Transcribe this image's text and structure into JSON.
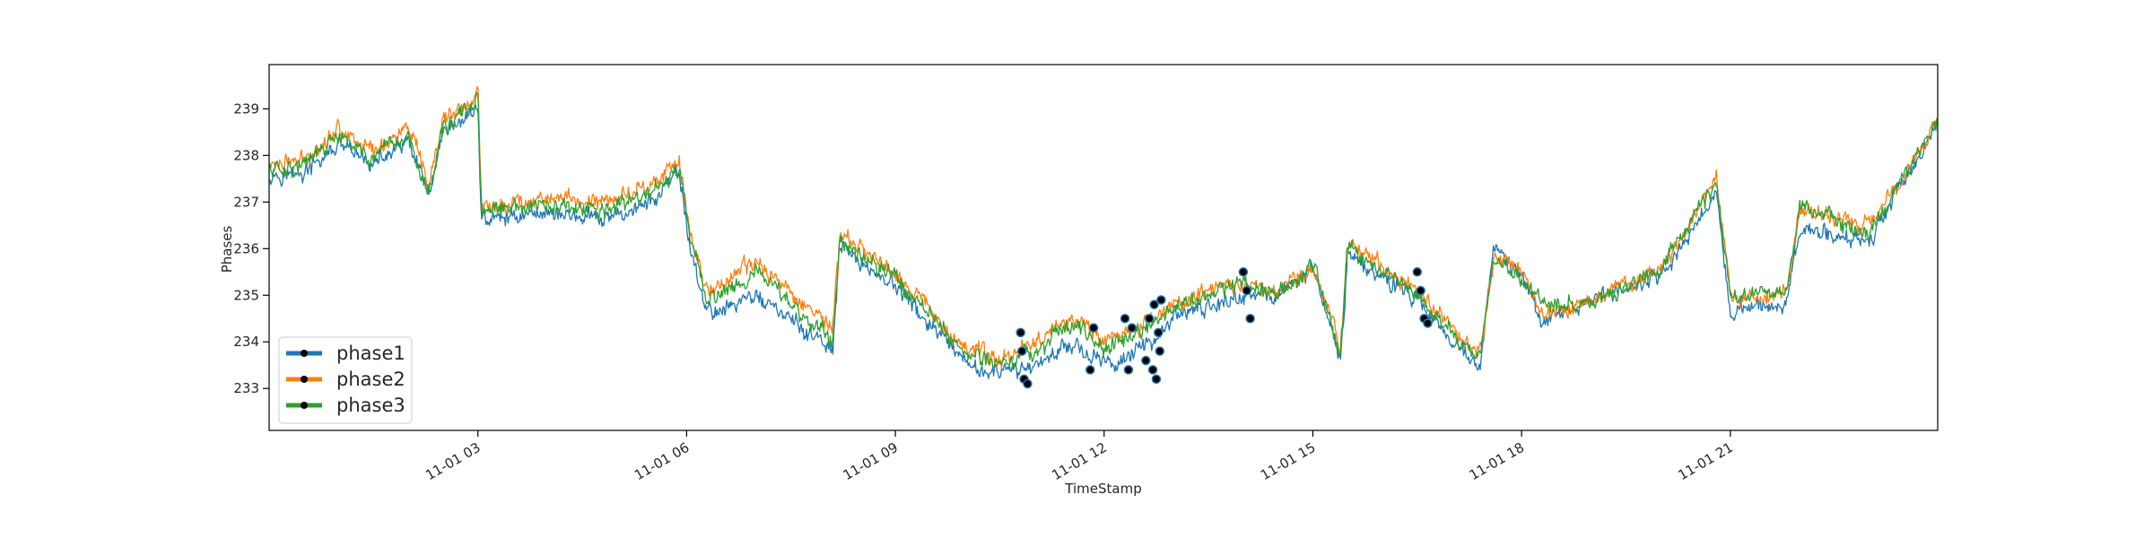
{
  "chart_data": {
    "type": "line",
    "title": "",
    "xlabel": "TimeStamp",
    "ylabel": "Phases",
    "xlim": [
      "2018-11-01 00:00",
      "2018-11-01 23:59"
    ],
    "ylim": [
      232.1,
      239.95
    ],
    "grid": false,
    "legend_position": "lower-left",
    "x_tick_labels": [
      "11-01 03",
      "11-01 06",
      "11-01 09",
      "11-01 12",
      "11-01 15",
      "11-01 18",
      "11-01 21"
    ],
    "x_tick_hours": [
      3,
      6,
      9,
      12,
      15,
      18,
      21
    ],
    "y_ticks": [
      233,
      234,
      235,
      236,
      237,
      238,
      239
    ],
    "series": [
      {
        "name": "phase1",
        "color": "#1f77b4",
        "anchor_hours": [
          0,
          0.5,
          1,
          1.5,
          2,
          2.3,
          2.5,
          2.9,
          3.0,
          3.05,
          4,
          4.8,
          5.5,
          5.9,
          6.05,
          6.3,
          7,
          8.1,
          8.2,
          9,
          10,
          10.5,
          11,
          11.5,
          12,
          12.5,
          13,
          14,
          14.5,
          15,
          15.4,
          15.5,
          16.5,
          17.4,
          17.6,
          18,
          18.3,
          19,
          20,
          20.8,
          21,
          21.8,
          22,
          23,
          24
        ],
        "anchor_values": [
          237.6,
          237.6,
          238.2,
          237.8,
          238.3,
          237.1,
          238.4,
          238.9,
          239.1,
          236.6,
          236.8,
          236.6,
          237.0,
          237.6,
          236.0,
          234.6,
          235.0,
          233.8,
          236.0,
          235.2,
          233.5,
          233.3,
          233.5,
          234.0,
          233.5,
          233.8,
          234.5,
          235.0,
          235.0,
          235.6,
          233.6,
          235.9,
          234.9,
          233.4,
          236.0,
          235.4,
          234.4,
          234.9,
          235.4,
          237.2,
          234.7,
          234.8,
          236.4,
          236.2,
          238.7
        ]
      },
      {
        "name": "phase2",
        "color": "#ff7f0e",
        "anchor_hours": [
          0,
          0.5,
          1,
          1.5,
          2,
          2.3,
          2.5,
          2.9,
          3.0,
          3.05,
          4,
          4.8,
          5.5,
          5.9,
          6.05,
          6.3,
          7,
          8.1,
          8.2,
          9,
          10,
          10.5,
          11,
          11.5,
          12,
          12.5,
          13,
          14,
          14.5,
          15,
          15.4,
          15.5,
          16.5,
          17.4,
          17.6,
          18,
          18.3,
          19,
          20,
          20.8,
          21,
          21.8,
          22,
          23,
          24
        ],
        "anchor_values": [
          237.8,
          237.9,
          238.6,
          238.1,
          238.6,
          237.3,
          238.8,
          239.1,
          239.4,
          236.9,
          237.1,
          237.0,
          237.4,
          237.8,
          236.3,
          235.1,
          235.7,
          234.3,
          236.3,
          235.5,
          233.9,
          233.6,
          234.0,
          234.5,
          234.1,
          234.3,
          234.8,
          235.3,
          235.1,
          235.6,
          233.9,
          236.2,
          235.1,
          233.7,
          235.8,
          235.5,
          234.6,
          234.9,
          235.5,
          237.5,
          234.9,
          235.0,
          236.8,
          236.5,
          238.8
        ]
      },
      {
        "name": "phase3",
        "color": "#2ca02c",
        "anchor_hours": [
          0,
          0.5,
          1,
          1.5,
          2,
          2.3,
          2.5,
          2.9,
          3.0,
          3.05,
          4,
          4.8,
          5.5,
          5.9,
          6.05,
          6.3,
          7,
          8.1,
          8.2,
          9,
          10,
          10.5,
          11,
          11.5,
          12,
          12.5,
          13,
          14,
          14.5,
          15,
          15.4,
          15.5,
          16.5,
          17.4,
          17.6,
          18,
          18.3,
          19,
          20,
          20.8,
          21,
          21.8,
          22,
          23,
          24
        ],
        "anchor_values": [
          237.7,
          237.8,
          238.4,
          237.9,
          238.4,
          237.2,
          238.6,
          239.0,
          239.3,
          236.8,
          236.9,
          236.8,
          237.2,
          237.7,
          236.2,
          234.9,
          235.5,
          234.0,
          236.2,
          235.4,
          233.8,
          233.5,
          233.8,
          234.4,
          233.9,
          234.2,
          234.7,
          235.3,
          235.0,
          235.7,
          233.8,
          236.1,
          235.0,
          233.6,
          235.8,
          235.3,
          234.8,
          234.8,
          235.6,
          237.4,
          235.0,
          235.1,
          236.9,
          236.3,
          238.8
        ]
      }
    ],
    "highlight_points": {
      "hours": [
        10.8,
        10.82,
        10.85,
        10.9,
        11.8,
        11.85,
        12.3,
        12.35,
        12.4,
        12.6,
        12.65,
        12.7,
        12.72,
        12.75,
        12.78,
        12.8,
        12.82,
        14.0,
        14.05,
        14.1,
        16.5,
        16.55,
        16.6,
        16.65
      ],
      "values": [
        234.2,
        233.8,
        233.2,
        233.1,
        233.4,
        234.3,
        234.5,
        233.4,
        234.3,
        233.6,
        234.5,
        233.4,
        234.8,
        233.2,
        234.2,
        233.8,
        234.9,
        235.5,
        235.1,
        234.5,
        235.5,
        235.1,
        234.5,
        234.4
      ],
      "marker_color": "#000000"
    }
  }
}
